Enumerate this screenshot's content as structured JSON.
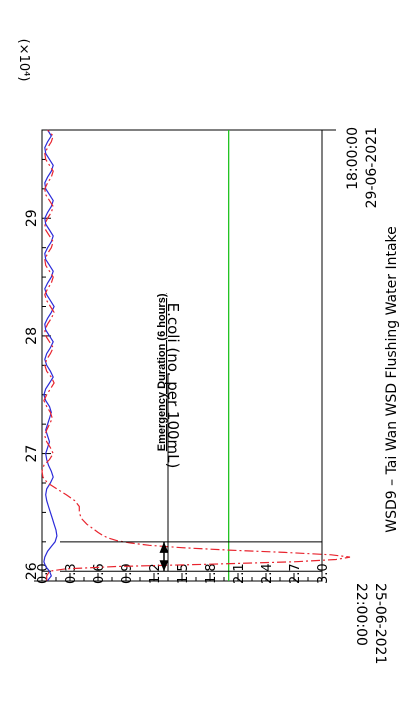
{
  "chart_data": {
    "type": "line",
    "orientation": "rotated-90-counterclockwise",
    "title": "WSD9 – Tai Wan WSD Flushing Water Intake",
    "ylabel": "E.coli (no. per 100mL)",
    "y_multiplier_label": "(×10⁴)",
    "y_ticks": [
      "0.0",
      "0.3",
      "0.6",
      "0.9",
      "1.2",
      "1.5",
      "1.8",
      "2.1",
      "2.4",
      "2.7",
      "3.0"
    ],
    "ylim": [
      0,
      3.0
    ],
    "x_ticks": [
      "26",
      "27",
      "28",
      "29"
    ],
    "x_tick_values": [
      26,
      27,
      28,
      29
    ],
    "xlim": [
      25.917,
      29.75
    ],
    "x_start": {
      "time": "22:00:00",
      "date": "25-06-2021"
    },
    "x_end": {
      "time": "18:00:00",
      "date": "29-06-2021"
    },
    "threshold": {
      "value": 2.0,
      "color": "#21c421"
    },
    "annotation": {
      "label": "Emergency Duration (6 hours)",
      "x_start": 26.0,
      "x_end": 26.25
    },
    "series": [
      {
        "style": "solid",
        "color": "#2b2bd9",
        "x": [
          25.92,
          25.96,
          26.0,
          26.04,
          26.08,
          26.12,
          26.17,
          26.21,
          26.25,
          26.3,
          26.35,
          26.4,
          26.45,
          26.5,
          26.55,
          26.6,
          26.65,
          26.7,
          26.75,
          26.8,
          26.85,
          26.9,
          26.95,
          27.0,
          27.05,
          27.1,
          27.15,
          27.2,
          27.25,
          27.3,
          27.35,
          27.4,
          27.45,
          27.5,
          27.55,
          27.6,
          27.65,
          27.7,
          27.75,
          27.8,
          27.85,
          27.9,
          27.95,
          28.0,
          28.05,
          28.1,
          28.15,
          28.2,
          28.25,
          28.3,
          28.35,
          28.4,
          28.45,
          28.5,
          28.55,
          28.6,
          28.65,
          28.7,
          28.75,
          28.8,
          28.85,
          28.9,
          28.95,
          29.0,
          29.05,
          29.1,
          29.15,
          29.2,
          29.25,
          29.3,
          29.35,
          29.4,
          29.45,
          29.5,
          29.55,
          29.6,
          29.65,
          29.7,
          29.75
        ],
        "values": [
          0.06,
          0.1,
          0.08,
          0.04,
          0.02,
          0.03,
          0.06,
          0.1,
          0.14,
          0.16,
          0.15,
          0.13,
          0.11,
          0.09,
          0.07,
          0.05,
          0.04,
          0.05,
          0.09,
          0.12,
          0.1,
          0.07,
          0.05,
          0.04,
          0.06,
          0.08,
          0.06,
          0.04,
          0.06,
          0.08,
          0.1,
          0.08,
          0.04,
          0.02,
          0.04,
          0.08,
          0.12,
          0.09,
          0.05,
          0.03,
          0.05,
          0.09,
          0.12,
          0.08,
          0.04,
          0.03,
          0.06,
          0.1,
          0.13,
          0.09,
          0.05,
          0.03,
          0.06,
          0.1,
          0.12,
          0.08,
          0.04,
          0.03,
          0.06,
          0.1,
          0.12,
          0.08,
          0.04,
          0.03,
          0.06,
          0.1,
          0.12,
          0.08,
          0.04,
          0.03,
          0.06,
          0.1,
          0.12,
          0.08,
          0.04,
          0.03,
          0.06,
          0.1,
          0.06
        ]
      },
      {
        "style": "dash-dot",
        "color": "#e8242e",
        "x": [
          25.92,
          25.96,
          26.0,
          26.02,
          26.04,
          26.06,
          26.08,
          26.1,
          26.12,
          26.14,
          26.16,
          26.18,
          26.2,
          26.22,
          26.24,
          26.26,
          26.28,
          26.3,
          26.33,
          26.36,
          26.4,
          26.45,
          26.5,
          26.55,
          26.6,
          26.65,
          26.7,
          26.75,
          26.8,
          26.85,
          26.9,
          26.95,
          27.0,
          27.05,
          27.1,
          27.15,
          27.2,
          27.25,
          27.3,
          27.35,
          27.4,
          27.45,
          27.5,
          27.55,
          27.6,
          27.65,
          27.7,
          27.75,
          27.8,
          27.85,
          27.9,
          27.95,
          28.0,
          28.05,
          28.1,
          28.15,
          28.2,
          28.25,
          28.3,
          28.35,
          28.4,
          28.45,
          28.5,
          28.55,
          28.6,
          28.65,
          28.7,
          28.75,
          28.8,
          28.85,
          28.9,
          28.95,
          29.0,
          29.05,
          29.1,
          29.15,
          29.2,
          29.25,
          29.3,
          29.35,
          29.4,
          29.45,
          29.5,
          29.55,
          29.6,
          29.65,
          29.7,
          29.75
        ],
        "values": [
          0.05,
          0.05,
          0.08,
          0.25,
          0.8,
          1.8,
          2.7,
          3.15,
          3.3,
          3.1,
          2.6,
          2.0,
          1.5,
          1.15,
          0.95,
          0.8,
          0.72,
          0.66,
          0.6,
          0.55,
          0.48,
          0.42,
          0.4,
          0.4,
          0.35,
          0.26,
          0.16,
          0.06,
          0.01,
          0.0,
          0.02,
          0.08,
          0.12,
          0.09,
          0.05,
          0.03,
          0.05,
          0.08,
          0.11,
          0.09,
          0.05,
          0.02,
          0.05,
          0.09,
          0.13,
          0.1,
          0.05,
          0.03,
          0.05,
          0.09,
          0.12,
          0.08,
          0.04,
          0.03,
          0.06,
          0.1,
          0.13,
          0.09,
          0.05,
          0.03,
          0.06,
          0.1,
          0.12,
          0.08,
          0.04,
          0.03,
          0.06,
          0.1,
          0.12,
          0.08,
          0.04,
          0.03,
          0.06,
          0.1,
          0.12,
          0.08,
          0.04,
          0.03,
          0.06,
          0.1,
          0.12,
          0.08,
          0.04,
          0.03,
          0.06,
          0.1,
          0.12,
          0.06
        ]
      }
    ]
  }
}
